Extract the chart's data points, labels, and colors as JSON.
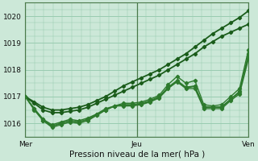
{
  "title": "",
  "xlabel": "Pression niveau de la mer( hPa )",
  "ylabel": "",
  "bg_color": "#cce8d8",
  "grid_color": "#99ccb0",
  "line_colors": [
    "#1a5c1a",
    "#1a5c1a",
    "#2d7a2d",
    "#2d7a2d",
    "#2d7a2d",
    "#2d7a2d"
  ],
  "ylim": [
    1015.5,
    1020.5
  ],
  "xlim": [
    0,
    96
  ],
  "yticks": [
    1016,
    1017,
    1018,
    1019,
    1020
  ],
  "xtick_positions": [
    0,
    48,
    96
  ],
  "xtick_labels": [
    "Mer",
    "Jeu",
    "Ven"
  ],
  "series": [
    [
      1017.0,
      1016.8,
      1016.6,
      1016.5,
      1016.5,
      1016.55,
      1016.6,
      1016.7,
      1016.85,
      1017.0,
      1017.2,
      1017.4,
      1017.55,
      1017.7,
      1017.85,
      1018.0,
      1018.2,
      1018.4,
      1018.6,
      1018.85,
      1019.1,
      1019.35,
      1019.55,
      1019.75,
      1019.95,
      1020.2
    ],
    [
      1017.0,
      1016.75,
      1016.5,
      1016.4,
      1016.4,
      1016.45,
      1016.5,
      1016.6,
      1016.75,
      1016.9,
      1017.05,
      1017.2,
      1017.35,
      1017.5,
      1017.65,
      1017.8,
      1018.0,
      1018.2,
      1018.4,
      1018.6,
      1018.85,
      1019.05,
      1019.25,
      1019.4,
      1019.55,
      1019.7
    ],
    [
      1017.0,
      1016.55,
      1016.15,
      1015.95,
      1016.05,
      1016.15,
      1016.1,
      1016.2,
      1016.35,
      1016.5,
      1016.65,
      1016.75,
      1016.75,
      1016.8,
      1016.9,
      1017.05,
      1017.45,
      1017.75,
      1017.5,
      1017.6,
      1016.7,
      1016.65,
      1016.7,
      1017.0,
      1017.3,
      1018.75
    ],
    [
      1017.0,
      1016.55,
      1016.1,
      1015.9,
      1016.0,
      1016.1,
      1016.05,
      1016.15,
      1016.3,
      1016.5,
      1016.65,
      1016.7,
      1016.7,
      1016.75,
      1016.85,
      1017.0,
      1017.35,
      1017.6,
      1017.35,
      1017.4,
      1016.6,
      1016.6,
      1016.6,
      1016.9,
      1017.2,
      1018.5
    ],
    [
      1017.0,
      1016.5,
      1016.1,
      1015.85,
      1015.95,
      1016.05,
      1016.0,
      1016.1,
      1016.3,
      1016.5,
      1016.65,
      1016.65,
      1016.65,
      1016.7,
      1016.8,
      1016.95,
      1017.3,
      1017.55,
      1017.3,
      1017.3,
      1016.55,
      1016.55,
      1016.55,
      1016.85,
      1017.1,
      1018.4
    ],
    [
      1017.0,
      1016.55,
      1016.15,
      1015.9,
      1016.0,
      1016.1,
      1016.05,
      1016.15,
      1016.35,
      1016.55,
      1016.65,
      1016.68,
      1016.68,
      1016.72,
      1016.82,
      1016.97,
      1017.32,
      1017.58,
      1017.32,
      1017.38,
      1016.62,
      1016.6,
      1016.62,
      1016.9,
      1017.15,
      1018.6
    ]
  ],
  "linewidths": [
    1.3,
    1.3,
    1.0,
    1.0,
    1.0,
    1.0
  ],
  "marker_size": 2.2,
  "marker": "D",
  "vline_color": "#4a7a4a",
  "tick_fontsize": 6.5,
  "xlabel_fontsize": 7.5
}
